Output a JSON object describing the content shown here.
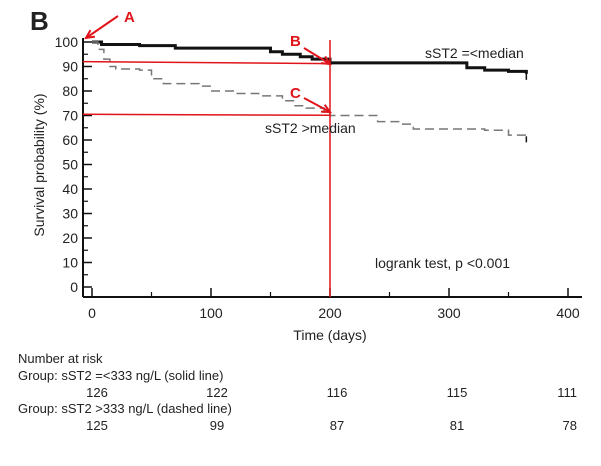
{
  "panel_label": "B",
  "chart_data": {
    "type": "line",
    "title": "",
    "xlabel": "Time (days)",
    "ylabel": "Survival probability (%)",
    "xlim": [
      0,
      400
    ],
    "ylim": [
      0,
      100
    ],
    "xticks": [
      "0",
      "100",
      "200",
      "300",
      "400"
    ],
    "yticks": [
      "0",
      "10",
      "20",
      "30",
      "40",
      "50",
      "60",
      "70",
      "80",
      "90",
      "100"
    ],
    "series": [
      {
        "name": "sST2 =<median",
        "style": "solid",
        "x": [
          0,
          8,
          40,
          70,
          110,
          150,
          160,
          175,
          185,
          200,
          310,
          315,
          330,
          350,
          365
        ],
        "y": [
          100,
          99,
          98.5,
          97.5,
          97.5,
          96,
          95,
          94,
          93,
          91.5,
          91.5,
          89.5,
          88.5,
          88,
          87
        ]
      },
      {
        "name": "sST2 >median",
        "style": "dashed",
        "x": [
          0,
          5,
          10,
          15,
          20,
          40,
          50,
          60,
          90,
          100,
          120,
          140,
          160,
          170,
          180,
          195,
          200,
          230,
          240,
          260,
          270,
          330,
          350,
          365
        ],
        "y": [
          100,
          97,
          93,
          90,
          89,
          88.5,
          85,
          83,
          82,
          80,
          79,
          78,
          76,
          74,
          73,
          71,
          70,
          70,
          67.5,
          66.5,
          64.5,
          64,
          62,
          61.5
        ]
      }
    ],
    "annotations": {
      "test": "logrank test, p <0.001",
      "markers": [
        {
          "label": "A",
          "x": 0,
          "y": 100
        },
        {
          "label": "B",
          "x": 200,
          "y": 92
        },
        {
          "label": "C",
          "x": 200,
          "y": 70.5
        }
      ],
      "color": "#e0141b"
    },
    "number_at_risk": {
      "title": "Number at risk",
      "times": [
        0,
        100,
        200,
        300,
        400
      ],
      "groups": [
        {
          "label": "Group: sST2 =<333 ng/L (solid line)",
          "values": [
            "126",
            "122",
            "116",
            "115",
            "111"
          ]
        },
        {
          "label": "Group: sST2 >333 ng/L (dashed line)",
          "values": [
            "125",
            "99",
            "87",
            "81",
            "78"
          ]
        }
      ]
    }
  }
}
